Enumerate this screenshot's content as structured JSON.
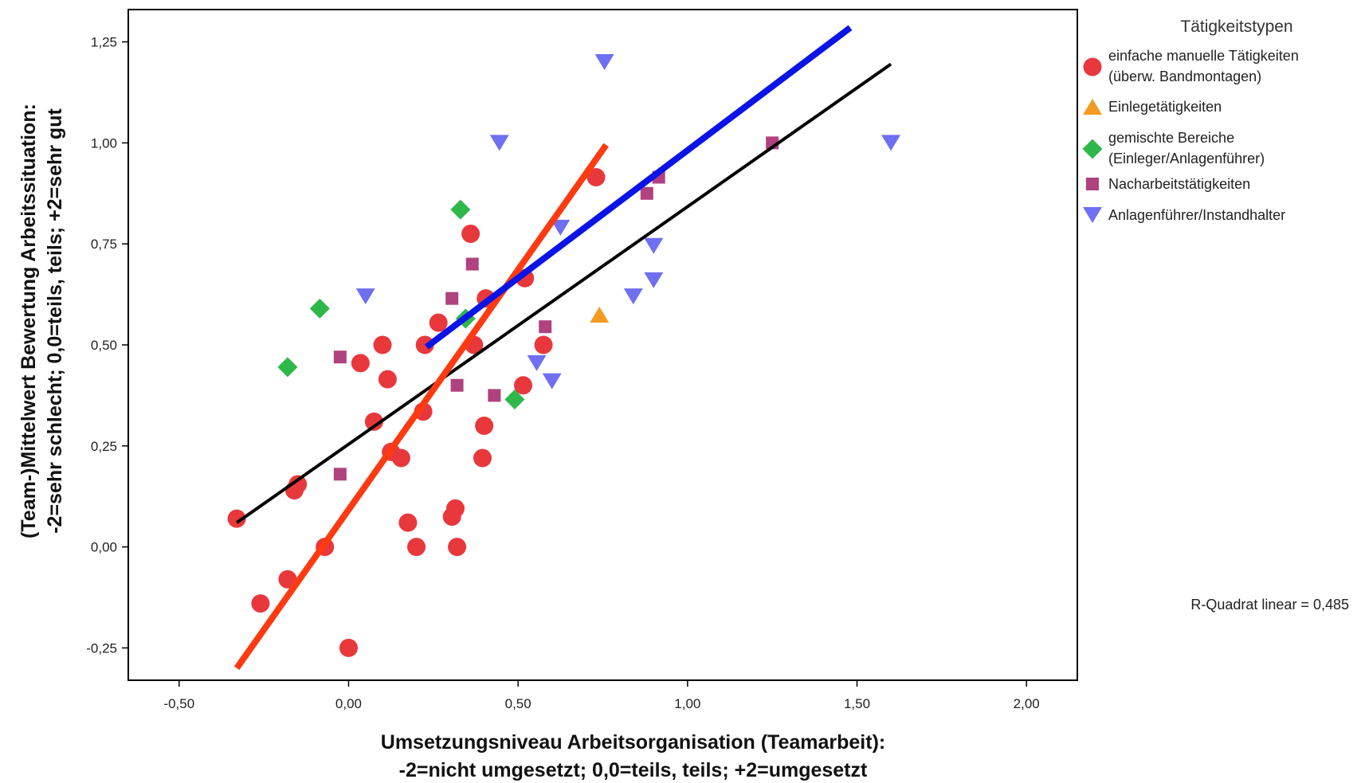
{
  "chart_data": {
    "type": "scatter",
    "xlabel": [
      "Umsetzungsniveau Arbeitsorganisation (Teamarbeit):",
      "-2=nicht umgesetzt; 0,0=teils, teils; +2=umgesetzt"
    ],
    "ylabel": [
      "(Team-)Mittelwert Bewertung Arbeitssituation:",
      "-2=sehr schlecht; 0,0=teils, teils; +2=sehr gut"
    ],
    "xlim": [
      -0.65,
      2.15
    ],
    "ylim": [
      -0.33,
      1.33
    ],
    "x_ticks": [
      -0.5,
      0.0,
      0.5,
      1.0,
      1.5,
      2.0
    ],
    "x_tick_labels": [
      "-0,50",
      "0,00",
      "0,50",
      "1,00",
      "1,50",
      "2,00"
    ],
    "y_ticks": [
      -0.25,
      0.0,
      0.25,
      0.5,
      0.75,
      1.0,
      1.25
    ],
    "y_tick_labels": [
      "-0,25",
      "0,00",
      "0,25",
      "0,50",
      "0,75",
      "1,00",
      "1,25"
    ],
    "grid": false,
    "legend_position": "right",
    "legend_title": "Tätigkeitstypen",
    "annotation": "R-Quadrat linear = 0,485",
    "series": [
      {
        "name": [
          "einfache manuelle Tätigkeiten",
          "(überw. Bandmontagen)"
        ],
        "marker": "circle",
        "color": "#e8383c",
        "points": [
          [
            -0.33,
            0.07
          ],
          [
            -0.26,
            -0.14
          ],
          [
            -0.18,
            -0.08
          ],
          [
            -0.16,
            0.14
          ],
          [
            -0.15,
            0.155
          ],
          [
            -0.07,
            0.0
          ],
          [
            0.0,
            -0.25
          ],
          [
            0.035,
            0.455
          ],
          [
            0.075,
            0.31
          ],
          [
            0.1,
            0.5
          ],
          [
            0.115,
            0.415
          ],
          [
            0.125,
            0.235
          ],
          [
            0.155,
            0.22
          ],
          [
            0.175,
            0.06
          ],
          [
            0.2,
            0.0
          ],
          [
            0.22,
            0.335
          ],
          [
            0.225,
            0.5
          ],
          [
            0.265,
            0.555
          ],
          [
            0.305,
            0.075
          ],
          [
            0.315,
            0.095
          ],
          [
            0.32,
            0.0
          ],
          [
            0.36,
            0.775
          ],
          [
            0.37,
            0.5
          ],
          [
            0.395,
            0.22
          ],
          [
            0.4,
            0.3
          ],
          [
            0.405,
            0.615
          ],
          [
            0.515,
            0.4
          ],
          [
            0.52,
            0.665
          ],
          [
            0.575,
            0.5
          ],
          [
            0.73,
            0.915
          ]
        ]
      },
      {
        "name": [
          "Einlegetätigkeiten"
        ],
        "marker": "triangle-up",
        "color": "#f39b22",
        "points": [
          [
            0.74,
            0.575
          ]
        ]
      },
      {
        "name": [
          "gemischte Bereiche",
          "(Einleger/Anlagenführer)"
        ],
        "marker": "diamond",
        "color": "#2eb84a",
        "points": [
          [
            -0.18,
            0.445
          ],
          [
            -0.085,
            0.59
          ],
          [
            0.33,
            0.835
          ],
          [
            0.345,
            0.565
          ],
          [
            0.49,
            0.365
          ]
        ]
      },
      {
        "name": [
          "Nacharbeitstätigkeiten"
        ],
        "marker": "square",
        "color": "#b0427f",
        "points": [
          [
            -0.025,
            0.47
          ],
          [
            -0.025,
            0.18
          ],
          [
            0.305,
            0.615
          ],
          [
            0.32,
            0.4
          ],
          [
            0.365,
            0.7
          ],
          [
            0.43,
            0.375
          ],
          [
            0.58,
            0.545
          ],
          [
            0.88,
            0.875
          ],
          [
            0.915,
            0.915
          ],
          [
            1.25,
            1.0
          ]
        ]
      },
      {
        "name": [
          "Anlagenführer/Instandhalter"
        ],
        "marker": "triangle-down",
        "color": "#6f6ff2",
        "points": [
          [
            0.05,
            0.62
          ],
          [
            0.445,
            1.0
          ],
          [
            0.555,
            0.455
          ],
          [
            0.6,
            0.41
          ],
          [
            0.625,
            0.79
          ],
          [
            0.755,
            1.2
          ],
          [
            0.84,
            0.62
          ],
          [
            0.9,
            0.745
          ],
          [
            0.9,
            0.66
          ],
          [
            1.6,
            1.0
          ]
        ]
      }
    ],
    "fit_lines": [
      {
        "color": "#000000",
        "x": [
          -0.33,
          1.6
        ],
        "y": [
          0.06,
          1.195
        ]
      },
      {
        "color": "#ff3a10",
        "x": [
          -0.33,
          0.76
        ],
        "y": [
          -0.3,
          0.995
        ]
      },
      {
        "color": "#0a14e6",
        "x": [
          0.23,
          1.48
        ],
        "y": [
          0.495,
          1.285
        ]
      }
    ]
  }
}
